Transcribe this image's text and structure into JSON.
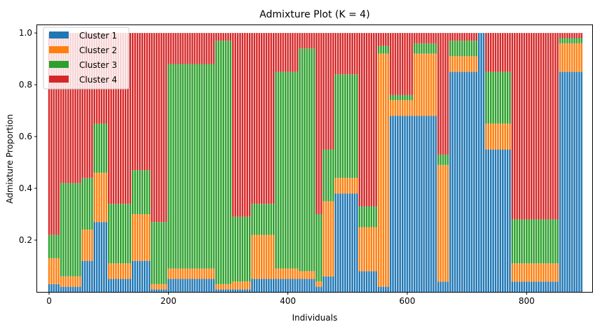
{
  "chart_data": {
    "type": "bar",
    "stacked": true,
    "title": "Admixture Plot (K = 4)",
    "xlabel": "Individuals",
    "ylabel": "Admixture Proportion",
    "xlim": [
      -20,
      910
    ],
    "ylim": [
      0.0,
      1.03
    ],
    "xticks": [
      0,
      200,
      400,
      600,
      800
    ],
    "yticks": [
      0.2,
      0.4,
      0.6,
      0.8,
      1.0
    ],
    "grid": false,
    "legend_position": "upper-left",
    "n_individuals": 895,
    "bar_interval": 4,
    "series": [
      {
        "name": "Cluster 1",
        "color": "#1f77b4"
      },
      {
        "name": "Cluster 2",
        "color": "#ff7f0e"
      },
      {
        "name": "Cluster 3",
        "color": "#2ca02c"
      },
      {
        "name": "Cluster 4",
        "color": "#d62728"
      }
    ],
    "segments": [
      {
        "start": 0,
        "end": 20,
        "c1": 0.03,
        "c2": 0.1,
        "c3": 0.09
      },
      {
        "start": 20,
        "end": 55,
        "c1": 0.02,
        "c2": 0.04,
        "c3": 0.36
      },
      {
        "start": 55,
        "end": 75,
        "c1": 0.12,
        "c2": 0.12,
        "c3": 0.2
      },
      {
        "start": 75,
        "end": 100,
        "c1": 0.27,
        "c2": 0.19,
        "c3": 0.19
      },
      {
        "start": 100,
        "end": 140,
        "c1": 0.05,
        "c2": 0.06,
        "c3": 0.23
      },
      {
        "start": 140,
        "end": 170,
        "c1": 0.12,
        "c2": 0.18,
        "c3": 0.17
      },
      {
        "start": 170,
        "end": 200,
        "c1": 0.01,
        "c2": 0.02,
        "c3": 0.24
      },
      {
        "start": 200,
        "end": 280,
        "c1": 0.05,
        "c2": 0.04,
        "c3": 0.79
      },
      {
        "start": 280,
        "end": 305,
        "c1": 0.01,
        "c2": 0.02,
        "c3": 0.94
      },
      {
        "start": 305,
        "end": 340,
        "c1": 0.01,
        "c2": 0.03,
        "c3": 0.25
      },
      {
        "start": 340,
        "end": 380,
        "c1": 0.05,
        "c2": 0.17,
        "c3": 0.12
      },
      {
        "start": 380,
        "end": 420,
        "c1": 0.05,
        "c2": 0.04,
        "c3": 0.76
      },
      {
        "start": 420,
        "end": 445,
        "c1": 0.05,
        "c2": 0.03,
        "c3": 0.86
      },
      {
        "start": 445,
        "end": 460,
        "c1": 0.02,
        "c2": 0.02,
        "c3": 0.26
      },
      {
        "start": 460,
        "end": 480,
        "c1": 0.06,
        "c2": 0.29,
        "c3": 0.2
      },
      {
        "start": 480,
        "end": 520,
        "c1": 0.38,
        "c2": 0.06,
        "c3": 0.4
      },
      {
        "start": 520,
        "end": 550,
        "c1": 0.08,
        "c2": 0.17,
        "c3": 0.08
      },
      {
        "start": 550,
        "end": 570,
        "c1": 0.02,
        "c2": 0.9,
        "c3": 0.03
      },
      {
        "start": 570,
        "end": 610,
        "c1": 0.68,
        "c2": 0.06,
        "c3": 0.02
      },
      {
        "start": 610,
        "end": 650,
        "c1": 0.68,
        "c2": 0.24,
        "c3": 0.04
      },
      {
        "start": 650,
        "end": 670,
        "c1": 0.04,
        "c2": 0.45,
        "c3": 0.04
      },
      {
        "start": 670,
        "end": 720,
        "c1": 0.85,
        "c2": 0.06,
        "c3": 0.06
      },
      {
        "start": 720,
        "end": 730,
        "c1": 1.0,
        "c2": 0.0,
        "c3": 0.0
      },
      {
        "start": 730,
        "end": 775,
        "c1": 0.55,
        "c2": 0.1,
        "c3": 0.2
      },
      {
        "start": 775,
        "end": 855,
        "c1": 0.04,
        "c2": 0.07,
        "c3": 0.17
      },
      {
        "start": 855,
        "end": 895,
        "c1": 0.85,
        "c2": 0.11,
        "c3": 0.02
      }
    ]
  }
}
